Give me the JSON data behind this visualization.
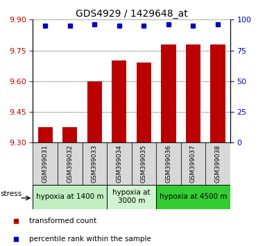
{
  "title": "GDS4929 / 1429648_at",
  "samples": [
    "GSM399031",
    "GSM399032",
    "GSM399033",
    "GSM399034",
    "GSM399035",
    "GSM399036",
    "GSM399037",
    "GSM399038"
  ],
  "bar_values": [
    9.375,
    9.375,
    9.6,
    9.7,
    9.69,
    9.78,
    9.78,
    9.78
  ],
  "percentile_values": [
    95,
    95,
    96,
    95,
    95,
    96,
    95,
    96
  ],
  "ylim_left": [
    9.3,
    9.9
  ],
  "ylim_right": [
    0,
    100
  ],
  "yticks_left": [
    9.3,
    9.45,
    9.6,
    9.75,
    9.9
  ],
  "yticks_right": [
    0,
    25,
    50,
    75,
    100
  ],
  "bar_color": "#bb0000",
  "dot_color": "#0000bb",
  "bar_width": 0.6,
  "groups": [
    {
      "label": "hypoxia at 1400 m",
      "cols": [
        0,
        1,
        2
      ],
      "color": "#c0eec0"
    },
    {
      "label": "hypoxia at\n3000 m",
      "cols": [
        3,
        4
      ],
      "color": "#d0f4d0"
    },
    {
      "label": "hypoxia at 4500 m",
      "cols": [
        5,
        6,
        7
      ],
      "color": "#33cc33"
    }
  ],
  "legend_items": [
    {
      "color": "#bb0000",
      "label": "transformed count"
    },
    {
      "color": "#0000bb",
      "label": "percentile rank within the sample"
    }
  ],
  "stress_label": "stress",
  "title_fontsize": 10,
  "tick_fontsize": 8,
  "bar_label_fontsize": 7,
  "group_label_fontsize": 7.5
}
